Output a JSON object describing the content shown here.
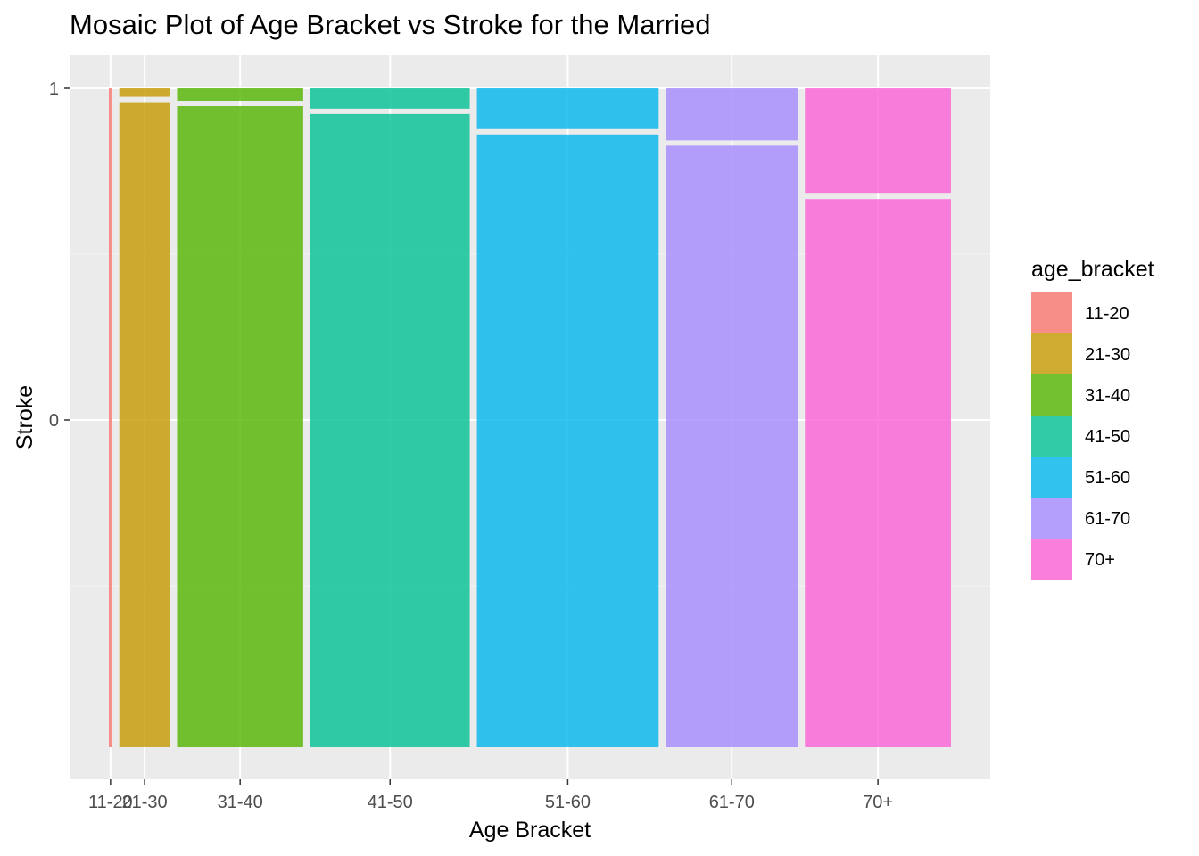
{
  "chart_data": {
    "type": "mosaic",
    "title": "Mosaic Plot of Age Bracket vs Stroke for the Married",
    "xlabel": "Age Bracket",
    "ylabel": "Stroke",
    "y_tick_labels": [
      "0",
      "1"
    ],
    "legend_title": "age_bracket",
    "legend_position": "right",
    "grid": true,
    "categories": [
      "11-20",
      "21-30",
      "31-40",
      "41-50",
      "51-60",
      "61-70",
      "70+"
    ],
    "widths": [
      0.004,
      0.061,
      0.152,
      0.192,
      0.219,
      0.159,
      0.176
    ],
    "stroke_0_proportion": [
      1.0,
      0.983,
      0.977,
      0.965,
      0.934,
      0.917,
      0.836
    ],
    "stroke_1_proportion": [
      0.0,
      0.017,
      0.023,
      0.035,
      0.066,
      0.083,
      0.164
    ],
    "colors": [
      "#F8766D",
      "#C49A00",
      "#53B400",
      "#00C094",
      "#00B6EB",
      "#A58AFF",
      "#FB61D7"
    ]
  }
}
